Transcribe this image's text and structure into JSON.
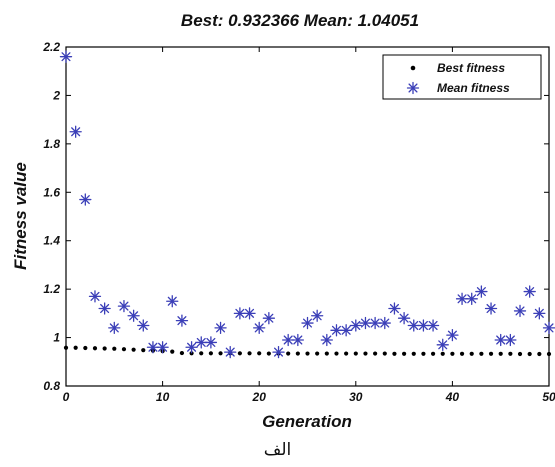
{
  "caption": "الف",
  "chart_data": {
    "type": "scatter",
    "title": "Best: 0.932366 Mean: 1.04051",
    "xlabel": "Generation",
    "ylabel": "Fitness value",
    "xlim": [
      0,
      50
    ],
    "ylim": [
      0.8,
      2.2
    ],
    "xticks": [
      0,
      10,
      20,
      30,
      40,
      50
    ],
    "yticks": [
      0.8,
      1,
      1.2,
      1.4,
      1.6,
      1.8,
      2,
      2.2
    ],
    "ytick_labels": [
      "0.8",
      "1",
      "1.2",
      "1.4",
      "1.6",
      "1.8",
      "2",
      "2.2"
    ],
    "legend_position": "top-right",
    "series": [
      {
        "name": "Best fitness",
        "marker": "dot",
        "color": "#000000",
        "x": [
          0,
          1,
          2,
          3,
          4,
          5,
          6,
          7,
          8,
          9,
          10,
          11,
          12,
          13,
          14,
          15,
          16,
          17,
          18,
          19,
          20,
          21,
          22,
          23,
          24,
          25,
          26,
          27,
          28,
          29,
          30,
          31,
          32,
          33,
          34,
          35,
          36,
          37,
          38,
          39,
          40,
          41,
          42,
          43,
          44,
          45,
          46,
          47,
          48,
          49,
          50
        ],
        "y": [
          0.958,
          0.958,
          0.957,
          0.956,
          0.955,
          0.954,
          0.952,
          0.95,
          0.948,
          0.946,
          0.944,
          0.942,
          0.936,
          0.935,
          0.935,
          0.935,
          0.935,
          0.935,
          0.935,
          0.935,
          0.935,
          0.934,
          0.934,
          0.934,
          0.934,
          0.934,
          0.934,
          0.934,
          0.934,
          0.934,
          0.934,
          0.934,
          0.934,
          0.934,
          0.933,
          0.933,
          0.933,
          0.933,
          0.933,
          0.933,
          0.933,
          0.933,
          0.933,
          0.933,
          0.933,
          0.933,
          0.933,
          0.932,
          0.932,
          0.932,
          0.932
        ]
      },
      {
        "name": "Mean fitness",
        "marker": "asterisk",
        "color": "#3b3fb8",
        "x": [
          0,
          1,
          2,
          3,
          4,
          5,
          6,
          7,
          8,
          9,
          10,
          11,
          12,
          13,
          14,
          15,
          16,
          17,
          18,
          19,
          20,
          21,
          22,
          23,
          24,
          25,
          26,
          27,
          28,
          29,
          30,
          31,
          32,
          33,
          34,
          35,
          36,
          37,
          38,
          39,
          40,
          41,
          42,
          43,
          44,
          45,
          46,
          47,
          48,
          49,
          50
        ],
        "y": [
          2.16,
          1.85,
          1.57,
          1.17,
          1.12,
          1.04,
          1.13,
          1.09,
          1.05,
          0.96,
          0.96,
          1.15,
          1.07,
          0.96,
          0.98,
          0.98,
          1.04,
          0.94,
          1.1,
          1.1,
          1.04,
          1.08,
          0.94,
          0.99,
          0.99,
          1.06,
          1.09,
          0.99,
          1.03,
          1.03,
          1.05,
          1.06,
          1.06,
          1.06,
          1.12,
          1.08,
          1.05,
          1.05,
          1.05,
          0.97,
          1.01,
          1.16,
          1.16,
          1.19,
          1.12,
          0.99,
          0.99,
          1.11,
          1.19,
          1.1,
          1.04
        ]
      }
    ]
  }
}
